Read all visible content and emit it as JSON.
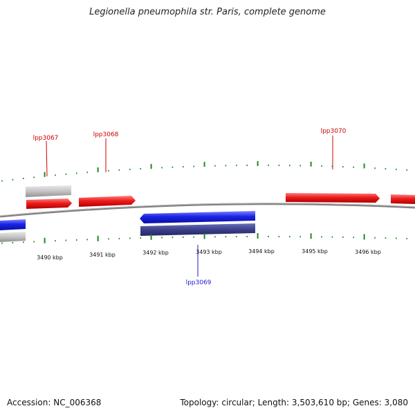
{
  "title": "Legionella pneumophila str. Paris, complete genome",
  "accession_text": "Accession: NC_006368",
  "summary_text": "Topology: circular; Length: 3,503,610 bp; Genes: 3,080",
  "colors": {
    "forward": "#e8191d",
    "reverse": "#1a23e6",
    "forward_feature": "#c8c8c8",
    "reverse_feature": "#c0c0c0",
    "reverse_feature_dark": "#3b3f8c",
    "backbone": "#808080",
    "ticks": "#1a8a1a",
    "label_forward": "#cc0000",
    "label_reverse": "#1a1acc"
  },
  "scale_ticks": [
    "3490 kbp",
    "3491 kbp",
    "3492 kbp",
    "3493 kbp",
    "3494 kbp",
    "3495 kbp",
    "3496 kbp"
  ],
  "gene_labels": [
    {
      "name": "lpp3067",
      "strand": "forward"
    },
    {
      "name": "lpp3068",
      "strand": "forward"
    },
    {
      "name": "lpp3069",
      "strand": "reverse"
    },
    {
      "name": "lpp3070",
      "strand": "forward"
    }
  ]
}
